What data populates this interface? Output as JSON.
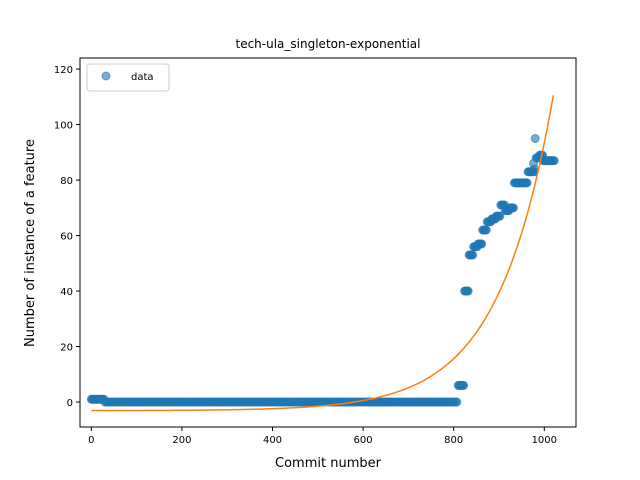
{
  "chart_data": {
    "type": "scatter",
    "title": "tech-ula_singleton-exponential",
    "xlabel": "Commit number",
    "ylabel": "Number of instance of a feature",
    "xlim": [
      -25,
      1070
    ],
    "ylim": [
      -9,
      124
    ],
    "x_ticks": [
      0,
      200,
      400,
      600,
      800,
      1000
    ],
    "y_ticks": [
      0,
      20,
      40,
      60,
      80,
      100,
      120
    ],
    "legend": {
      "position": "top-left",
      "entries": [
        "data"
      ]
    },
    "grid": false,
    "series": [
      {
        "name": "data",
        "kind": "points",
        "color": "#1f77b4",
        "segments": [
          {
            "x_start": 0,
            "x_end": 28,
            "step": 2,
            "y": 1
          },
          {
            "x_start": 30,
            "x_end": 808,
            "step": 3,
            "y": 0
          },
          {
            "x_start": 810,
            "x_end": 822,
            "step": 2,
            "y": 6
          },
          {
            "x_start": 824,
            "x_end": 832,
            "step": 2,
            "y": 40
          },
          {
            "x_start": 834,
            "x_end": 842,
            "step": 2,
            "y": 53
          },
          {
            "x_start": 844,
            "x_end": 852,
            "step": 2,
            "y": 56
          },
          {
            "x_start": 854,
            "x_end": 862,
            "step": 2,
            "y": 57
          },
          {
            "x_start": 864,
            "x_end": 872,
            "step": 2,
            "y": 62
          },
          {
            "x_start": 874,
            "x_end": 882,
            "step": 2,
            "y": 65
          },
          {
            "x_start": 884,
            "x_end": 892,
            "step": 2,
            "y": 66
          },
          {
            "x_start": 894,
            "x_end": 902,
            "step": 2,
            "y": 67
          },
          {
            "x_start": 904,
            "x_end": 912,
            "step": 2,
            "y": 71
          },
          {
            "x_start": 914,
            "x_end": 922,
            "step": 2,
            "y": 69
          },
          {
            "x_start": 924,
            "x_end": 932,
            "step": 2,
            "y": 70
          },
          {
            "x_start": 934,
            "x_end": 962,
            "step": 2,
            "y": 79
          },
          {
            "x_start": 964,
            "x_end": 978,
            "step": 2,
            "y": 83
          },
          {
            "x_start": 982,
            "x_end": 988,
            "step": 2,
            "y": 88
          },
          {
            "x_start": 990,
            "x_end": 996,
            "step": 2,
            "y": 89
          },
          {
            "x_start": 998,
            "x_end": 1022,
            "step": 2,
            "y": 87
          }
        ],
        "extra_points": [
          [
            980,
            95
          ],
          [
            978,
            84
          ],
          [
            976,
            86
          ]
        ]
      },
      {
        "name": "",
        "kind": "line",
        "color": "#ff7f0e",
        "model": "exponential",
        "params": {
          "a": 0.0265,
          "b": 0.0082,
          "c": -3.1
        },
        "x_range": [
          0,
          1022
        ]
      }
    ]
  }
}
